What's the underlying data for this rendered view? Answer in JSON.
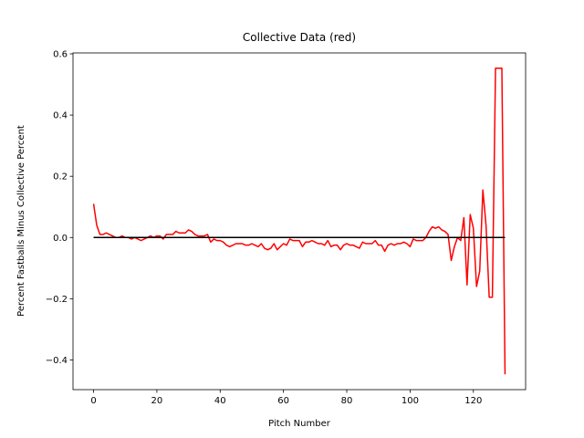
{
  "chart_data": {
    "type": "line",
    "title": "Collective Data (red)",
    "xlabel": "Pitch Number",
    "ylabel": "Percent Fastballs Minus Collective Percent",
    "x": [
      0,
      1,
      2,
      3,
      4,
      5,
      6,
      7,
      8,
      9,
      10,
      11,
      12,
      13,
      14,
      15,
      16,
      17,
      18,
      19,
      20,
      21,
      22,
      23,
      24,
      25,
      26,
      27,
      28,
      29,
      30,
      31,
      32,
      33,
      34,
      35,
      36,
      37,
      38,
      39,
      40,
      41,
      42,
      43,
      44,
      45,
      46,
      47,
      48,
      49,
      50,
      51,
      52,
      53,
      54,
      55,
      56,
      57,
      58,
      59,
      60,
      61,
      62,
      63,
      64,
      65,
      66,
      67,
      68,
      69,
      70,
      71,
      72,
      73,
      74,
      75,
      76,
      77,
      78,
      79,
      80,
      81,
      82,
      83,
      84,
      85,
      86,
      87,
      88,
      89,
      90,
      91,
      92,
      93,
      94,
      95,
      96,
      97,
      98,
      99,
      100,
      101,
      102,
      103,
      104,
      105,
      106,
      107,
      108,
      109,
      110,
      111,
      112,
      113,
      114,
      115,
      116,
      117,
      118,
      119,
      120,
      121,
      122,
      123,
      124,
      125,
      126,
      127,
      128,
      129,
      130
    ],
    "series": [
      {
        "name": "Collective Data",
        "color": "#ff0000",
        "values": [
          0.11,
          0.04,
          0.01,
          0.01,
          0.015,
          0.01,
          0.005,
          0.0,
          0.0,
          0.005,
          0.0,
          0.0,
          -0.005,
          0.0,
          -0.005,
          -0.01,
          -0.005,
          0.0,
          0.005,
          0.0,
          0.005,
          0.005,
          -0.005,
          0.01,
          0.01,
          0.01,
          0.02,
          0.015,
          0.015,
          0.015,
          0.025,
          0.02,
          0.01,
          0.005,
          0.005,
          0.005,
          0.01,
          -0.015,
          -0.005,
          -0.01,
          -0.01,
          -0.015,
          -0.025,
          -0.03,
          -0.025,
          -0.02,
          -0.02,
          -0.02,
          -0.025,
          -0.025,
          -0.02,
          -0.025,
          -0.03,
          -0.02,
          -0.035,
          -0.04,
          -0.035,
          -0.02,
          -0.04,
          -0.03,
          -0.02,
          -0.025,
          -0.005,
          -0.01,
          -0.01,
          -0.01,
          -0.03,
          -0.015,
          -0.015,
          -0.01,
          -0.015,
          -0.02,
          -0.02,
          -0.025,
          -0.01,
          -0.03,
          -0.025,
          -0.025,
          -0.04,
          -0.025,
          -0.02,
          -0.025,
          -0.025,
          -0.03,
          -0.035,
          -0.015,
          -0.02,
          -0.02,
          -0.02,
          -0.01,
          -0.025,
          -0.025,
          -0.045,
          -0.025,
          -0.02,
          -0.025,
          -0.02,
          -0.02,
          -0.015,
          -0.02,
          -0.03,
          -0.005,
          -0.01,
          -0.01,
          -0.01,
          0.0,
          0.02,
          0.035,
          0.03,
          0.035,
          0.025,
          0.02,
          0.01,
          -0.075,
          -0.03,
          0.0,
          -0.01,
          0.065,
          -0.155,
          0.075,
          0.03,
          -0.16,
          -0.11,
          0.155,
          0.04,
          -0.195,
          -0.195,
          0.553,
          0.553,
          0.553,
          -0.447
        ]
      },
      {
        "color": "#000000",
        "x": [
          0,
          130
        ],
        "values": [
          0,
          0
        ]
      }
    ],
    "xlim": [
      -6.5,
      136.5
    ],
    "ylim": [
      -0.497,
      0.603
    ],
    "xticks": [
      0,
      20,
      40,
      60,
      80,
      100,
      120
    ],
    "yticks": [
      {
        "value": -0.4,
        "label": "−0.4"
      },
      {
        "value": -0.2,
        "label": "−0.2"
      },
      {
        "value": 0,
        "label": "0.0"
      },
      0.2,
      0.4,
      0.6
    ],
    "grid": false
  }
}
